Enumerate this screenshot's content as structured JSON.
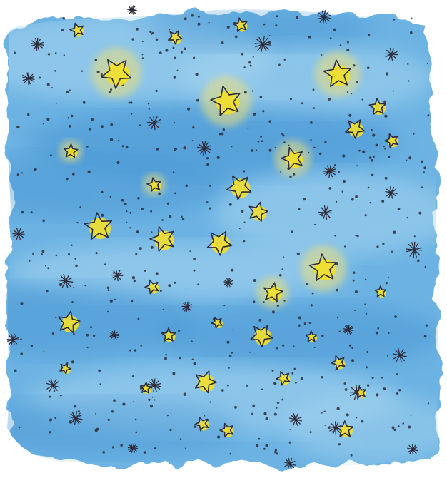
{
  "artwork": {
    "subject": "watercolor-starry-sky",
    "colors": {
      "background": "#ffffff",
      "wash_light": "#a9d6f0",
      "wash_mid": "#6cb3e3",
      "wash_deep": "#3f8fd0",
      "star_fill": "#f3e02a",
      "star_glow": "#ecdf7a",
      "ink": "#2f2c3a"
    },
    "icons": {
      "yellow_star": "sketched-yellow-star-icon",
      "ink_star": "ink-asterisk-star-icon",
      "dot": "ink-dot-icon"
    }
  }
}
